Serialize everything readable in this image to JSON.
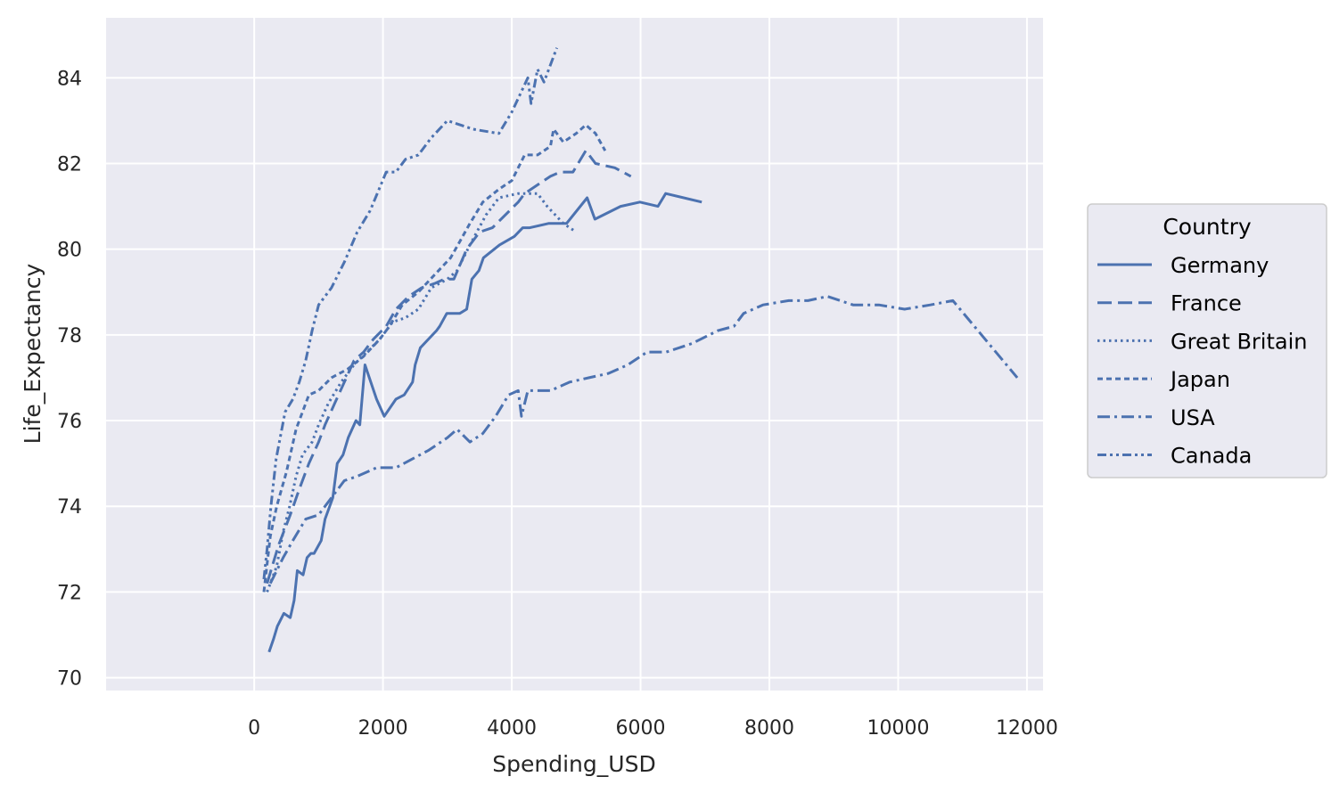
{
  "chart_data": {
    "type": "line",
    "xlabel": "Spending_USD",
    "ylabel": "Life_Expectancy",
    "xlim": [
      -2300,
      12250
    ],
    "ylim": [
      69.7,
      85.4
    ],
    "xticks": [
      0,
      2000,
      4000,
      6000,
      8000,
      10000,
      12000
    ],
    "yticks": [
      70,
      72,
      74,
      76,
      78,
      80,
      82,
      84
    ],
    "grid": true,
    "legend": {
      "title": "Country",
      "placement": "right"
    },
    "colors": {
      "line": "#4c72b0",
      "plot_bg": "#eaeaf2",
      "grid": "#ffffff",
      "text": "#262626"
    },
    "series": [
      {
        "name": "Germany",
        "dash": "solid",
        "points": [
          [
            230,
            70.6
          ],
          [
            300,
            70.9
          ],
          [
            360,
            71.2
          ],
          [
            460,
            71.5
          ],
          [
            560,
            71.4
          ],
          [
            620,
            71.8
          ],
          [
            670,
            72.5
          ],
          [
            760,
            72.4
          ],
          [
            820,
            72.8
          ],
          [
            880,
            72.9
          ],
          [
            930,
            72.9
          ],
          [
            1040,
            73.2
          ],
          [
            1100,
            73.7
          ],
          [
            1220,
            74.2
          ],
          [
            1290,
            75.0
          ],
          [
            1380,
            75.2
          ],
          [
            1460,
            75.6
          ],
          [
            1580,
            76.0
          ],
          [
            1640,
            75.9
          ],
          [
            1720,
            77.3
          ],
          [
            1900,
            76.5
          ],
          [
            2020,
            76.1
          ],
          [
            2200,
            76.5
          ],
          [
            2330,
            76.6
          ],
          [
            2460,
            76.9
          ],
          [
            2500,
            77.3
          ],
          [
            2580,
            77.7
          ],
          [
            2830,
            78.1
          ],
          [
            2880,
            78.2
          ],
          [
            2990,
            78.5
          ],
          [
            3190,
            78.5
          ],
          [
            3300,
            78.6
          ],
          [
            3380,
            79.3
          ],
          [
            3490,
            79.5
          ],
          [
            3560,
            79.8
          ],
          [
            3810,
            80.1
          ],
          [
            4040,
            80.3
          ],
          [
            4170,
            80.5
          ],
          [
            4280,
            80.5
          ],
          [
            4570,
            80.6
          ],
          [
            4850,
            80.6
          ],
          [
            5170,
            81.2
          ],
          [
            5290,
            80.7
          ],
          [
            5690,
            81.0
          ],
          [
            5990,
            81.1
          ],
          [
            6270,
            81.0
          ],
          [
            6390,
            81.3
          ],
          [
            6950,
            81.1
          ]
        ]
      },
      {
        "name": "France",
        "dash": "long",
        "points": [
          [
            200,
            72.2
          ],
          [
            300,
            72.7
          ],
          [
            380,
            73.1
          ],
          [
            560,
            73.8
          ],
          [
            700,
            74.4
          ],
          [
            850,
            75.0
          ],
          [
            1000,
            75.5
          ],
          [
            1100,
            75.9
          ],
          [
            1250,
            76.4
          ],
          [
            1400,
            76.9
          ],
          [
            1550,
            77.4
          ],
          [
            1700,
            77.6
          ],
          [
            1850,
            77.9
          ],
          [
            2050,
            78.2
          ],
          [
            2200,
            78.6
          ],
          [
            2400,
            78.9
          ],
          [
            2600,
            79.1
          ],
          [
            2800,
            79.2
          ],
          [
            2950,
            79.3
          ],
          [
            3100,
            79.3
          ],
          [
            3300,
            80.0
          ],
          [
            3500,
            80.4
          ],
          [
            3700,
            80.5
          ],
          [
            4100,
            81.1
          ],
          [
            4200,
            81.3
          ],
          [
            4300,
            81.4
          ],
          [
            4600,
            81.7
          ],
          [
            4750,
            81.8
          ],
          [
            4950,
            81.8
          ],
          [
            5150,
            82.3
          ],
          [
            5300,
            82.0
          ],
          [
            5600,
            81.9
          ],
          [
            5850,
            81.7
          ]
        ]
      },
      {
        "name": "Great Britain",
        "dash": "dotted",
        "points": [
          [
            200,
            72.0
          ],
          [
            350,
            72.6
          ],
          [
            450,
            73.4
          ],
          [
            550,
            74.0
          ],
          [
            650,
            74.7
          ],
          [
            750,
            75.2
          ],
          [
            900,
            75.5
          ],
          [
            1000,
            75.9
          ],
          [
            1150,
            76.4
          ],
          [
            1350,
            76.9
          ],
          [
            1550,
            77.3
          ],
          [
            1750,
            77.6
          ],
          [
            1950,
            77.9
          ],
          [
            2150,
            78.3
          ],
          [
            2350,
            78.4
          ],
          [
            2550,
            78.6
          ],
          [
            2750,
            79.1
          ],
          [
            3000,
            79.3
          ],
          [
            3150,
            79.5
          ],
          [
            3350,
            80.1
          ],
          [
            3600,
            80.8
          ],
          [
            3800,
            81.2
          ],
          [
            4100,
            81.3
          ],
          [
            4400,
            81.3
          ],
          [
            4550,
            81.0
          ],
          [
            4800,
            80.6
          ],
          [
            5000,
            80.4
          ]
        ]
      },
      {
        "name": "Japan",
        "dash": "short",
        "points": [
          [
            150,
            72.0
          ],
          [
            250,
            73.3
          ],
          [
            350,
            74.0
          ],
          [
            500,
            74.8
          ],
          [
            650,
            75.8
          ],
          [
            850,
            76.6
          ],
          [
            1000,
            76.7
          ],
          [
            1200,
            77.0
          ],
          [
            1450,
            77.2
          ],
          [
            1700,
            77.5
          ],
          [
            1950,
            77.9
          ],
          [
            2100,
            78.2
          ],
          [
            2300,
            78.7
          ],
          [
            2550,
            79.0
          ],
          [
            2800,
            79.4
          ],
          [
            3050,
            79.8
          ],
          [
            3200,
            80.2
          ],
          [
            3350,
            80.6
          ],
          [
            3550,
            81.1
          ],
          [
            3800,
            81.4
          ],
          [
            4000,
            81.6
          ],
          [
            4200,
            82.2
          ],
          [
            4400,
            82.2
          ],
          [
            4600,
            82.4
          ],
          [
            4650,
            82.8
          ],
          [
            4800,
            82.5
          ],
          [
            5000,
            82.7
          ],
          [
            5150,
            82.9
          ],
          [
            5300,
            82.7
          ],
          [
            5450,
            82.3
          ]
        ]
      },
      {
        "name": "USA",
        "dash": "dashdot",
        "points": [
          [
            250,
            72.2
          ],
          [
            450,
            72.8
          ],
          [
            600,
            73.2
          ],
          [
            800,
            73.7
          ],
          [
            1000,
            73.8
          ],
          [
            1200,
            74.2
          ],
          [
            1400,
            74.6
          ],
          [
            1600,
            74.7
          ],
          [
            1900,
            74.9
          ],
          [
            2200,
            74.9
          ],
          [
            2450,
            75.1
          ],
          [
            2700,
            75.3
          ],
          [
            3000,
            75.6
          ],
          [
            3150,
            75.8
          ],
          [
            3350,
            75.5
          ],
          [
            3550,
            75.7
          ],
          [
            3750,
            76.1
          ],
          [
            3950,
            76.6
          ],
          [
            4100,
            76.7
          ],
          [
            4150,
            76.1
          ],
          [
            4250,
            76.7
          ],
          [
            4600,
            76.7
          ],
          [
            4900,
            76.9
          ],
          [
            5200,
            77.0
          ],
          [
            5500,
            77.1
          ],
          [
            5800,
            77.3
          ],
          [
            6100,
            77.6
          ],
          [
            6400,
            77.6
          ],
          [
            6800,
            77.8
          ],
          [
            7200,
            78.1
          ],
          [
            7450,
            78.2
          ],
          [
            7600,
            78.5
          ],
          [
            7900,
            78.7
          ],
          [
            8300,
            78.8
          ],
          [
            8600,
            78.8
          ],
          [
            8900,
            78.9
          ],
          [
            9300,
            78.7
          ],
          [
            9700,
            78.7
          ],
          [
            10100,
            78.6
          ],
          [
            10500,
            78.7
          ],
          [
            10850,
            78.8
          ],
          [
            11350,
            77.9
          ],
          [
            11850,
            77.0
          ]
        ]
      },
      {
        "name": "Canada",
        "dash": "dashdotdot",
        "points": [
          [
            150,
            72.3
          ],
          [
            200,
            73.0
          ],
          [
            260,
            74.0
          ],
          [
            340,
            75.1
          ],
          [
            480,
            76.2
          ],
          [
            600,
            76.5
          ],
          [
            700,
            76.9
          ],
          [
            800,
            77.4
          ],
          [
            900,
            78.1
          ],
          [
            1000,
            78.7
          ],
          [
            1200,
            79.1
          ],
          [
            1400,
            79.7
          ],
          [
            1600,
            80.4
          ],
          [
            1800,
            80.9
          ],
          [
            2050,
            81.8
          ],
          [
            2200,
            81.8
          ],
          [
            2350,
            82.1
          ],
          [
            2550,
            82.2
          ],
          [
            2750,
            82.6
          ],
          [
            3000,
            83.0
          ],
          [
            3400,
            82.8
          ],
          [
            3800,
            82.7
          ],
          [
            4000,
            83.2
          ],
          [
            4250,
            84.0
          ],
          [
            4300,
            83.4
          ],
          [
            4400,
            84.2
          ],
          [
            4500,
            83.9
          ],
          [
            4700,
            84.7
          ]
        ]
      }
    ]
  }
}
